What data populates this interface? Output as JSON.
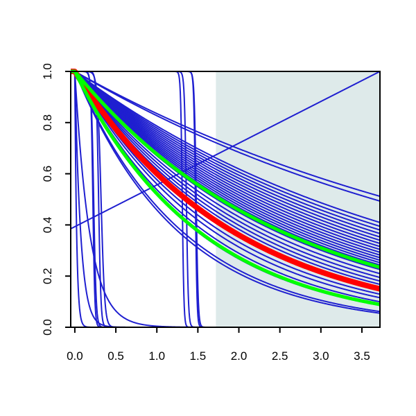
{
  "chart_data": {
    "type": "line",
    "title": "",
    "xlabel": "",
    "ylabel": "",
    "xlim": [
      -0.05,
      3.72
    ],
    "ylim": [
      0,
      1
    ],
    "x_ticks": [
      "0.0",
      "0.5",
      "1.0",
      "1.5",
      "2.0",
      "2.5",
      "3.0",
      "3.5"
    ],
    "y_ticks": [
      "0.0",
      "0.2",
      "0.4",
      "0.6",
      "0.8",
      "1.0"
    ],
    "shaded_region": {
      "x_from": 1.72,
      "x_to": 3.72,
      "color": "#deeaea"
    },
    "colors": {
      "blue": "#1f1fd0",
      "red": "#ff0000",
      "green": "#00ff00"
    },
    "series": [
      {
        "kind": "exp",
        "k": 0.18,
        "color": "blue"
      },
      {
        "kind": "exp",
        "k": 0.19,
        "color": "blue"
      },
      {
        "kind": "exp",
        "k": 0.24,
        "color": "blue"
      },
      {
        "kind": "exp",
        "k": 0.25,
        "color": "blue"
      },
      {
        "kind": "exp",
        "k": 0.26,
        "color": "blue"
      },
      {
        "kind": "exp",
        "k": 0.27,
        "color": "blue"
      },
      {
        "kind": "exp",
        "k": 0.28,
        "color": "blue"
      },
      {
        "kind": "exp",
        "k": 0.29,
        "color": "blue"
      },
      {
        "kind": "exp",
        "k": 0.3,
        "color": "blue"
      },
      {
        "kind": "exp",
        "k": 0.31,
        "color": "blue"
      },
      {
        "kind": "exp",
        "k": 0.32,
        "color": "blue"
      },
      {
        "kind": "exp",
        "k": 0.33,
        "color": "blue"
      },
      {
        "kind": "exp",
        "k": 0.34,
        "color": "blue"
      },
      {
        "kind": "exp",
        "k": 0.35,
        "color": "blue"
      },
      {
        "kind": "exp",
        "k": 0.36,
        "color": "blue"
      },
      {
        "kind": "exp",
        "k": 0.37,
        "color": "blue"
      },
      {
        "kind": "exp",
        "k": 0.38,
        "color": "blue"
      },
      {
        "kind": "exp",
        "k": 0.4,
        "color": "blue"
      },
      {
        "kind": "exp",
        "k": 0.42,
        "color": "blue"
      },
      {
        "kind": "exp",
        "k": 0.44,
        "color": "blue"
      },
      {
        "kind": "exp",
        "k": 0.46,
        "color": "blue"
      },
      {
        "kind": "exp",
        "k": 0.48,
        "color": "blue"
      },
      {
        "kind": "exp",
        "k": 0.5,
        "color": "blue"
      },
      {
        "kind": "exp",
        "k": 0.52,
        "color": "blue"
      },
      {
        "kind": "exp",
        "k": 0.55,
        "color": "blue"
      },
      {
        "kind": "exp",
        "k": 0.58,
        "color": "blue"
      },
      {
        "kind": "exp",
        "k": 0.62,
        "color": "blue"
      },
      {
        "kind": "exp",
        "k": 0.66,
        "color": "blue"
      },
      {
        "kind": "exp",
        "k": 0.75,
        "color": "blue"
      },
      {
        "kind": "exp",
        "k": 0.78,
        "color": "blue"
      },
      {
        "kind": "exp",
        "k": 5.5,
        "color": "blue"
      },
      {
        "kind": "exp",
        "k": 14,
        "color": "blue"
      },
      {
        "kind": "exp",
        "k": 45,
        "color": "blue"
      },
      {
        "kind": "logistic",
        "t": 0.22,
        "s": 0.012,
        "color": "blue"
      },
      {
        "kind": "logistic",
        "t": 0.23,
        "s": 0.015,
        "color": "blue"
      },
      {
        "kind": "logistic",
        "t": 0.29,
        "s": 0.014,
        "color": "blue"
      },
      {
        "kind": "logistic",
        "t": 0.32,
        "s": 0.022,
        "color": "blue"
      },
      {
        "kind": "logistic",
        "t": 1.31,
        "s": 0.01,
        "color": "blue"
      },
      {
        "kind": "logistic",
        "t": 1.36,
        "s": 0.012,
        "color": "blue"
      },
      {
        "kind": "logistic",
        "t": 1.47,
        "s": 0.01,
        "color": "blue"
      },
      {
        "kind": "logistic",
        "t": 1.48,
        "s": 0.012,
        "color": "blue"
      },
      {
        "kind": "linear",
        "y0": 0.385,
        "y1": 1.0,
        "color": "blue"
      },
      {
        "kind": "exp",
        "k": 0.51,
        "color": "red",
        "width": 8
      },
      {
        "kind": "exp",
        "k": 0.39,
        "color": "green",
        "width": 5
      },
      {
        "kind": "exp",
        "k": 0.65,
        "color": "green",
        "width": 5
      }
    ]
  }
}
